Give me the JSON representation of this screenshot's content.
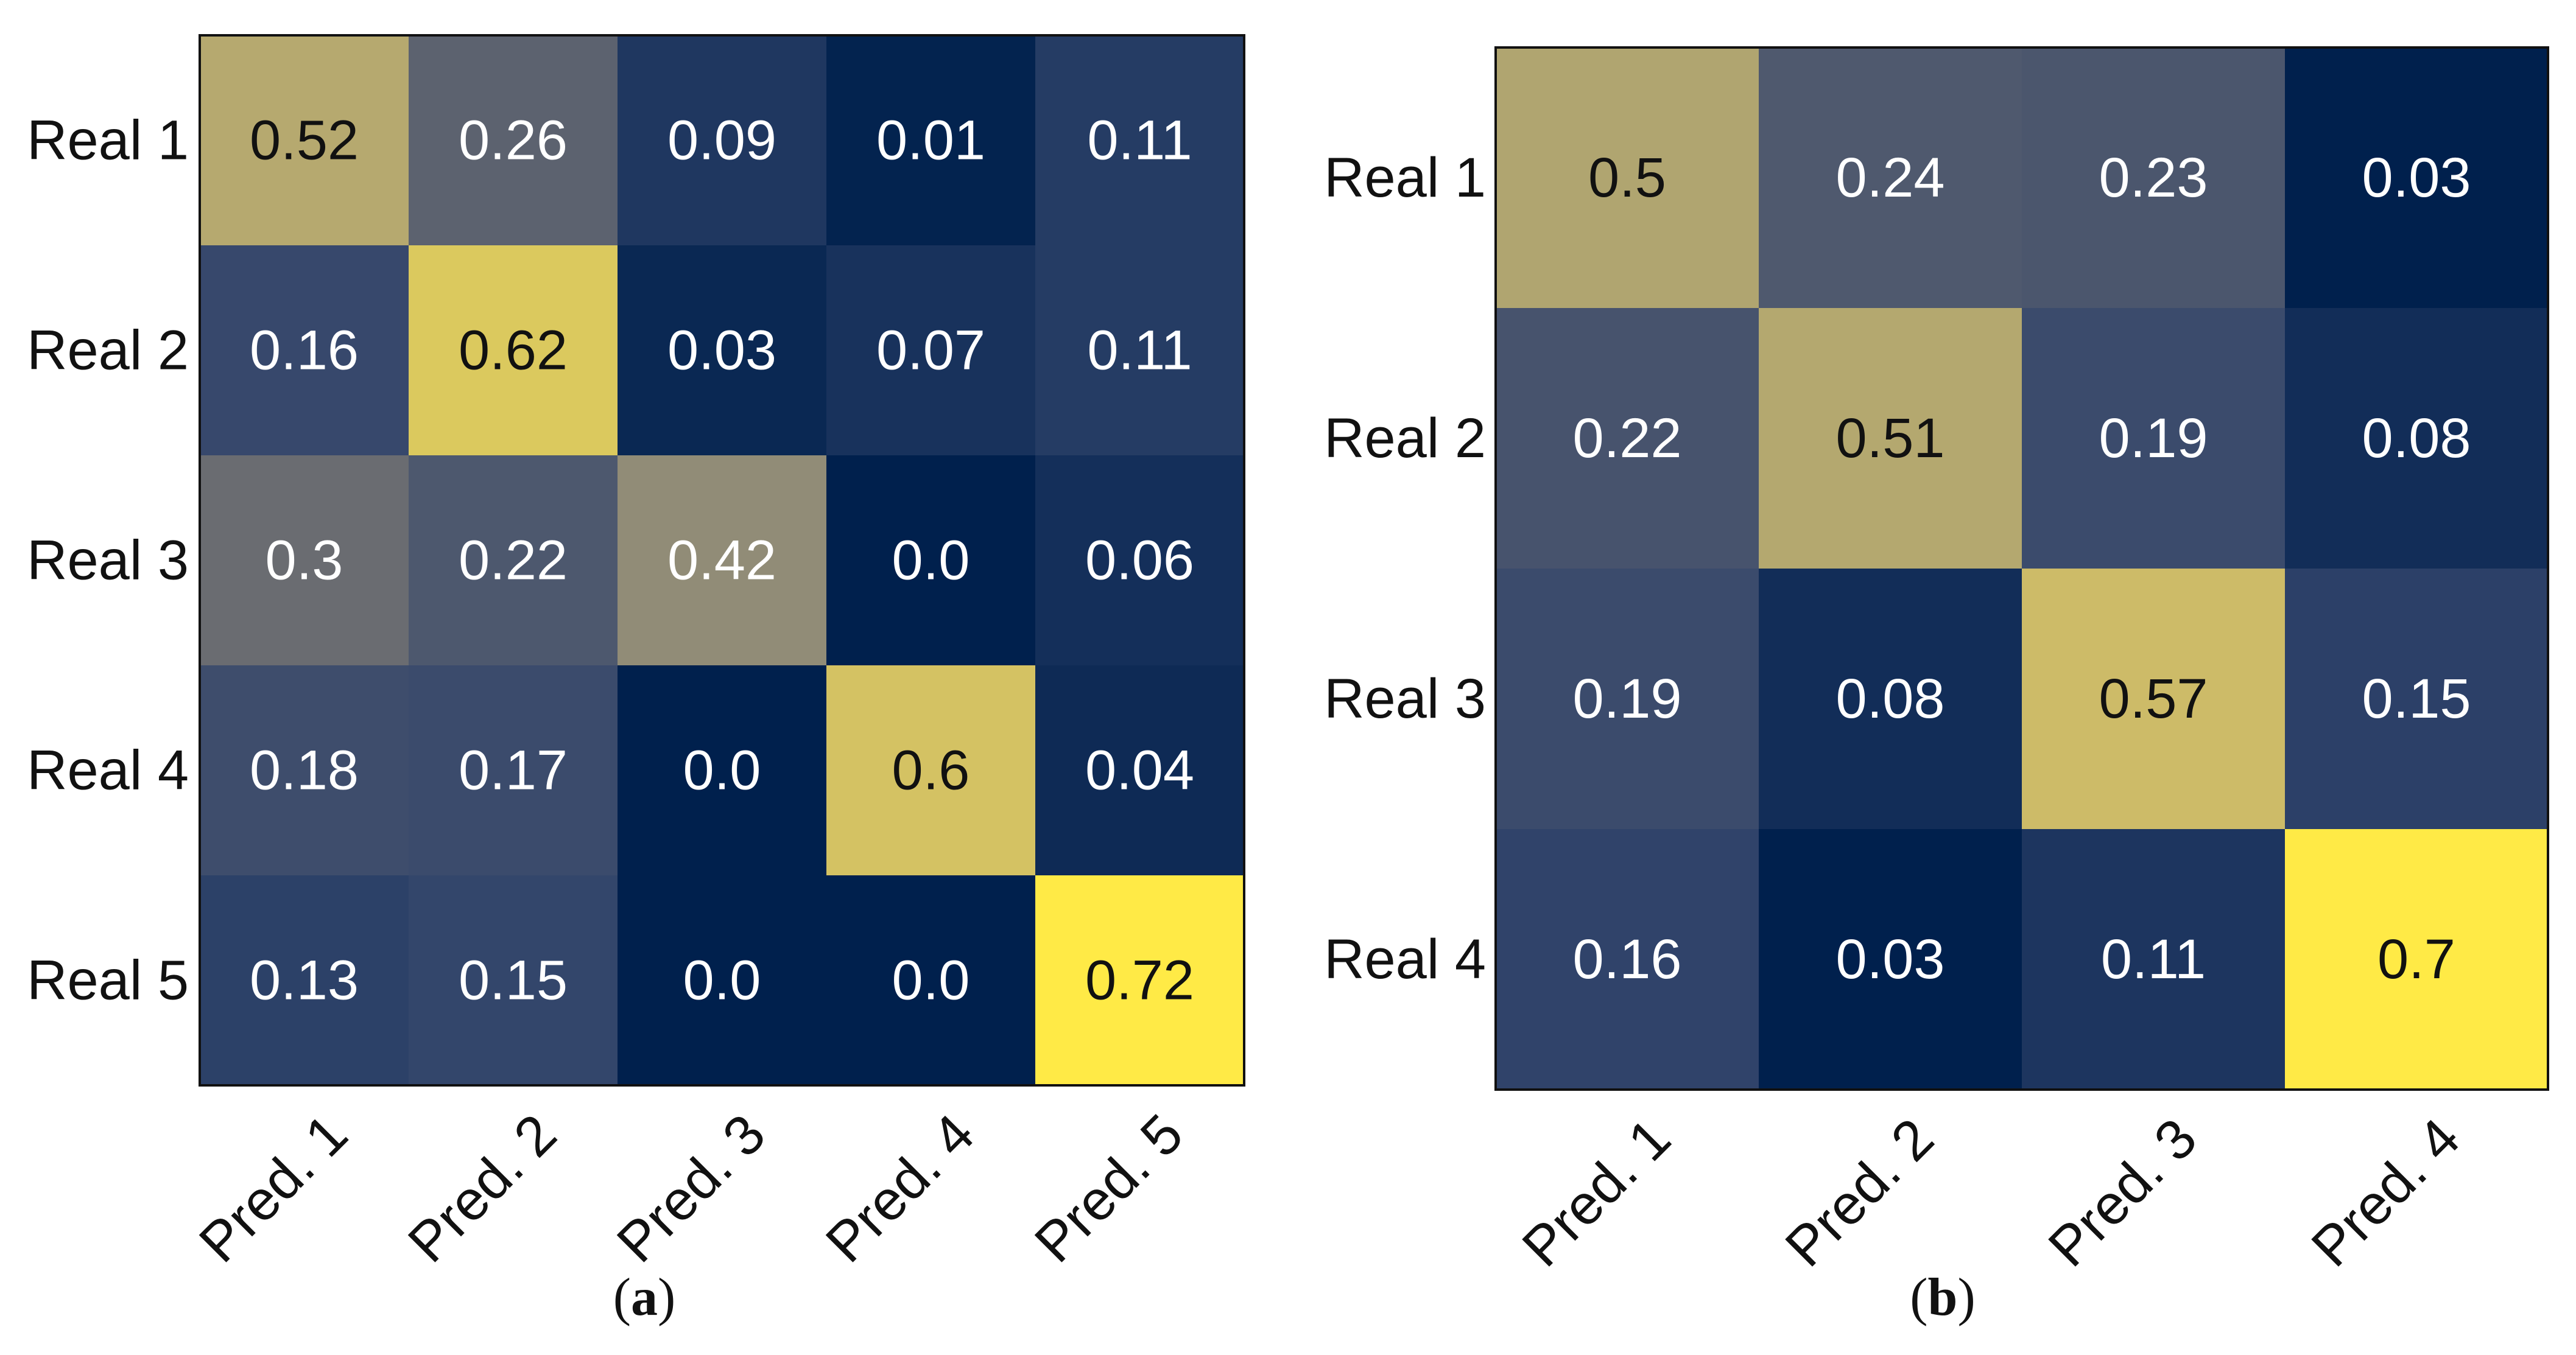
{
  "chart_data": [
    {
      "type": "heatmap",
      "caption_letter": "a",
      "title": "",
      "xlabel": "",
      "ylabel": "",
      "x_tick_labels": [
        "Pred. 1",
        "Pred. 2",
        "Pred. 3",
        "Pred. 4",
        "Pred. 5"
      ],
      "y_tick_labels": [
        "Real 1",
        "Real 2",
        "Real 3",
        "Real 4",
        "Real 5"
      ],
      "values": [
        [
          0.52,
          0.26,
          0.09,
          0.01,
          0.11
        ],
        [
          0.16,
          0.62,
          0.03,
          0.07,
          0.11
        ],
        [
          0.3,
          0.22,
          0.42,
          0.0,
          0.06
        ],
        [
          0.18,
          0.17,
          0.0,
          0.6,
          0.04
        ],
        [
          0.13,
          0.15,
          0.0,
          0.0,
          0.72
        ]
      ],
      "value_labels": [
        [
          "0.52",
          "0.26",
          "0.09",
          "0.01",
          "0.11"
        ],
        [
          "0.16",
          "0.62",
          "0.03",
          "0.07",
          "0.11"
        ],
        [
          "0.3",
          "0.22",
          "0.42",
          "0.0",
          "0.06"
        ],
        [
          "0.18",
          "0.17",
          "0.0",
          "0.6",
          "0.04"
        ],
        [
          "0.13",
          "0.15",
          "0.0",
          "0.0",
          "0.72"
        ]
      ],
      "colormap": "cividis",
      "vmin": 0.0,
      "vmax": 0.72
    },
    {
      "type": "heatmap",
      "caption_letter": "b",
      "title": "",
      "xlabel": "",
      "ylabel": "",
      "x_tick_labels": [
        "Pred. 1",
        "Pred. 2",
        "Pred. 3",
        "Pred. 4"
      ],
      "y_tick_labels": [
        "Real 1",
        "Real 2",
        "Real 3",
        "Real 4"
      ],
      "values": [
        [
          0.5,
          0.24,
          0.23,
          0.03
        ],
        [
          0.22,
          0.51,
          0.19,
          0.08
        ],
        [
          0.19,
          0.08,
          0.57,
          0.15
        ],
        [
          0.16,
          0.03,
          0.11,
          0.7
        ]
      ],
      "value_labels": [
        [
          "0.5",
          "0.24",
          "0.23",
          "0.03"
        ],
        [
          "0.22",
          "0.51",
          "0.19",
          "0.08"
        ],
        [
          "0.19",
          "0.08",
          "0.57",
          "0.15"
        ],
        [
          "0.16",
          "0.03",
          "0.11",
          "0.7"
        ]
      ],
      "colormap": "cividis",
      "vmin": 0.03,
      "vmax": 0.7
    }
  ],
  "colors": {
    "colormap_stops": [
      "#00204d",
      "#31446b",
      "#666970",
      "#958f78",
      "#cbba69",
      "#ffea46"
    ],
    "text_light": "#ffffff",
    "text_dark": "#111111",
    "frame": "#111111",
    "background": "#ffffff"
  }
}
